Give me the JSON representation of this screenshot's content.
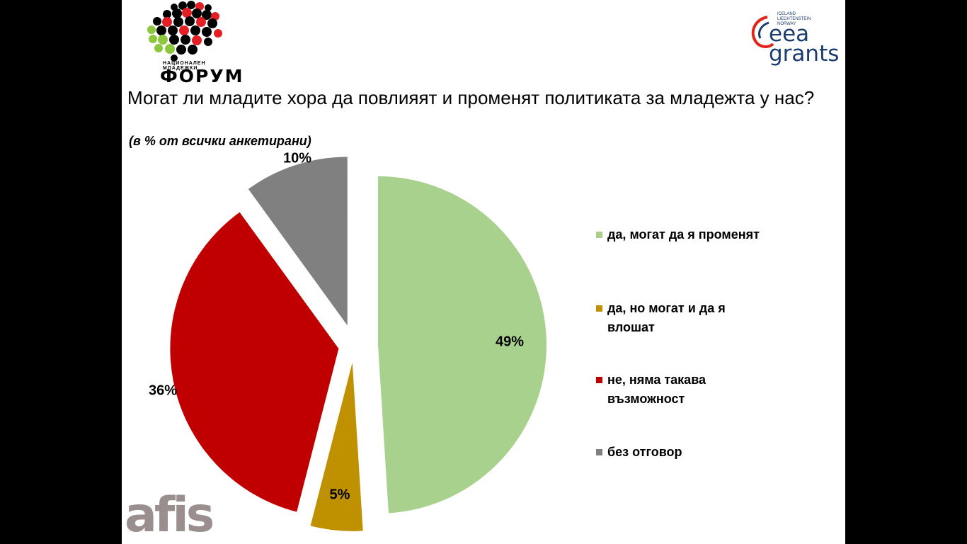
{
  "header": {
    "title": "Могат ли младите хора да повлияят и променят политиката за младежта у нас?",
    "subtitle": "(в % от всички анкетирани)"
  },
  "logos": {
    "forum_small": "НАЦИОНАЛЕН МЛАДЕЖКИ",
    "forum_big": "ФОРУМ",
    "eea_countries": [
      "ICELAND",
      "LIECHTENSTEIN",
      "NORWAY"
    ],
    "eea_words": [
      "eea",
      "grants"
    ],
    "afis": "afis"
  },
  "colors": {
    "green": "#a9d18e",
    "gold": "#bf9000",
    "red": "#c00000",
    "gray": "#808080",
    "logo_green": "#8dc63f",
    "logo_red": "#e31e24",
    "eea_red": "#e2231a",
    "eea_blue": "#1b3c6e"
  },
  "chart_data": {
    "type": "pie",
    "title": "Могат ли младите хора да повлияят и променят политиката за младежта у нас?",
    "subtitle": "(в % от всички анкетирани)",
    "legend_position": "right",
    "exploded": true,
    "slices": [
      {
        "name": "да, могат да я променят",
        "value": 49,
        "label": "49%",
        "color": "#a9d18e"
      },
      {
        "name": "да, но могат и да я влошат",
        "value": 5,
        "label": "5%",
        "color": "#bf9000"
      },
      {
        "name": "не, няма такава възможност",
        "value": 36,
        "label": "36%",
        "color": "#c00000"
      },
      {
        "name": "без отговор",
        "value": 10,
        "label": "10%",
        "color": "#808080"
      }
    ]
  }
}
